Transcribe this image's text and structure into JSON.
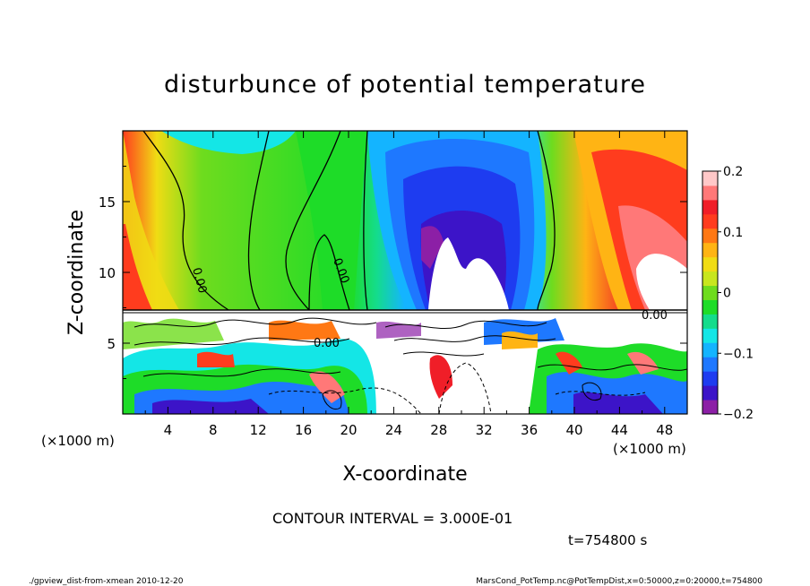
{
  "chart_data": {
    "type": "heatmap",
    "title": "disturbunce of potential temperature",
    "xlabel": "X-coordinate",
    "ylabel": "Z-coordinate",
    "x_unit_left": "(×1000 m)",
    "x_unit_right": "(×1000 m)",
    "xlim": [
      0,
      50
    ],
    "ylim": [
      0,
      20
    ],
    "x_ticks": [
      4,
      8,
      12,
      16,
      20,
      24,
      28,
      32,
      36,
      40,
      44,
      48
    ],
    "x_tick_labels": [
      "4",
      "8",
      "12",
      "16",
      "20",
      "24",
      "28",
      "32",
      "36",
      "40",
      "44",
      "48"
    ],
    "y_ticks": [
      5,
      10,
      15
    ],
    "y_tick_labels": [
      "5",
      "10",
      "15"
    ],
    "colorbar": {
      "min": -0.2,
      "max": 0.2,
      "ticks": [
        0.2,
        0.1,
        0,
        -0.1,
        -0.2
      ],
      "tick_labels": [
        "0.2",
        "0.1",
        "0",
        "−0.1",
        "−0.2"
      ],
      "colors": [
        "#8c1fa6",
        "#3c14c8",
        "#1e3cf0",
        "#1e78ff",
        "#14b4ff",
        "#14e6e6",
        "#14dc8c",
        "#1edc28",
        "#6edc1e",
        "#c8e61e",
        "#f0dc14",
        "#ffb414",
        "#ff7814",
        "#ff3c1e",
        "#f01e28",
        "#ff7878",
        "#ffc8c8"
      ]
    },
    "contour_labels": [
      "0.00",
      "0.00",
      "0.00",
      "0.00"
    ],
    "annotation": "CONTOUR INTERVAL = 3.000E-01",
    "time": "t=754800 s"
  },
  "footer": {
    "left": "./gpview_dist-from-xmean  2010-12-20",
    "right": "MarsCond_PotTemp.nc@PotTempDist,x=0:50000,z=0:20000,t=754800"
  }
}
